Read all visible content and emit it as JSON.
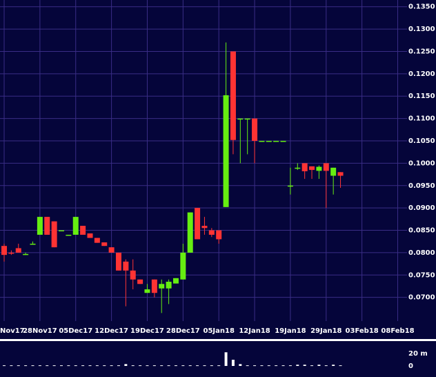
{
  "chart_data": {
    "type": "candlestick",
    "up_color": "#66ee11",
    "down_color": "#ff3333",
    "grid": true,
    "x": [
      0,
      1,
      2,
      3,
      4,
      5,
      6,
      7,
      8,
      9,
      10,
      11,
      12,
      13,
      14,
      15,
      16,
      17,
      18,
      19,
      20,
      21,
      22,
      23,
      24,
      25,
      26,
      27,
      28,
      29,
      30,
      31,
      32,
      33,
      34,
      35,
      36,
      37,
      38,
      39,
      40,
      41,
      42,
      43,
      44,
      45,
      46,
      47
    ],
    "open": [
      0.0815,
      0.08,
      0.081,
      0.0797,
      0.082,
      0.084,
      0.088,
      0.087,
      0.085,
      0.084,
      0.084,
      0.086,
      0.0843,
      0.0833,
      0.0823,
      0.0812,
      0.08,
      0.078,
      0.076,
      0.074,
      0.071,
      0.074,
      0.072,
      0.072,
      0.0731,
      0.074,
      0.08,
      0.09,
      0.086,
      0.085,
      0.085,
      0.0902,
      0.125,
      0.11,
      0.11,
      0.11,
      0.105,
      0.105,
      0.105,
      0.105,
      0.095,
      0.099,
      0.1,
      0.0993,
      0.0983,
      0.1,
      0.0972,
      0.098
    ],
    "high": [
      0.082,
      0.0805,
      0.082,
      0.08,
      0.0825,
      0.088,
      0.088,
      0.087,
      0.085,
      0.084,
      0.088,
      0.086,
      0.0843,
      0.0833,
      0.0823,
      0.0812,
      0.08,
      0.0785,
      0.0785,
      0.074,
      0.073,
      0.074,
      0.074,
      0.074,
      0.0743,
      0.082,
      0.089,
      0.09,
      0.088,
      0.0855,
      0.085,
      0.127,
      0.125,
      0.11,
      0.11,
      0.11,
      0.105,
      0.105,
      0.105,
      0.105,
      0.099,
      0.1,
      0.1,
      0.0993,
      0.0995,
      0.1,
      0.099,
      0.098
    ],
    "low": [
      0.078,
      0.0795,
      0.08,
      0.0795,
      0.082,
      0.084,
      0.084,
      0.0812,
      0.085,
      0.084,
      0.084,
      0.084,
      0.0833,
      0.0822,
      0.0815,
      0.08,
      0.076,
      0.068,
      0.0718,
      0.073,
      0.071,
      0.07,
      0.0665,
      0.0685,
      0.0731,
      0.074,
      0.08,
      0.083,
      0.084,
      0.0835,
      0.082,
      0.0902,
      0.102,
      0.1,
      0.102,
      0.1,
      0.105,
      0.105,
      0.105,
      0.105,
      0.093,
      0.0985,
      0.0965,
      0.0965,
      0.0965,
      0.09,
      0.093,
      0.0945
    ],
    "close": [
      0.0795,
      0.0798,
      0.08,
      0.0797,
      0.082,
      0.088,
      0.084,
      0.0812,
      0.085,
      0.084,
      0.088,
      0.084,
      0.0833,
      0.0822,
      0.0815,
      0.08,
      0.076,
      0.076,
      0.074,
      0.073,
      0.0718,
      0.071,
      0.073,
      0.0735,
      0.0743,
      0.08,
      0.089,
      0.083,
      0.0855,
      0.084,
      0.083,
      0.1152,
      0.1052,
      0.11,
      0.11,
      0.105,
      0.105,
      0.105,
      0.105,
      0.105,
      0.095,
      0.099,
      0.0982,
      0.0985,
      0.0992,
      0.0983,
      0.099,
      0.0972
    ],
    "volume": [
      1,
      1,
      1,
      1,
      1,
      1,
      1,
      1,
      1,
      1,
      1,
      1,
      1,
      1,
      1,
      1,
      1,
      3,
      1,
      1,
      1,
      1,
      1,
      1,
      1,
      1,
      1,
      1,
      1,
      1,
      1,
      22,
      10,
      3,
      1,
      1,
      1,
      1,
      1,
      1,
      1,
      2,
      2,
      1,
      2,
      1,
      2,
      1
    ],
    "xlim": [
      -0.58,
      56.3
    ],
    "xticks": [
      {
        "value": 0,
        "label": "Nov17"
      },
      {
        "value": 5,
        "label": "28Nov17"
      },
      {
        "value": 10,
        "label": "05Dec17"
      },
      {
        "value": 15,
        "label": "12Dec17"
      },
      {
        "value": 20,
        "label": "19Dec17"
      },
      {
        "value": 25,
        "label": "28Dec17"
      },
      {
        "value": 30,
        "label": "05Jan18"
      },
      {
        "value": 35,
        "label": "12Jan18"
      },
      {
        "value": 40,
        "label": "19Jan18"
      },
      {
        "value": 45,
        "label": "29Jan18"
      },
      {
        "value": 50,
        "label": "03Feb18"
      },
      {
        "value": 55,
        "label": "08Feb18"
      }
    ],
    "ylim": [
      0.0647,
      0.1365
    ],
    "yticks": [
      {
        "value": 0.135,
        "label": "0.1350"
      },
      {
        "value": 0.13,
        "label": "0.1300"
      },
      {
        "value": 0.125,
        "label": "0.1250"
      },
      {
        "value": 0.12,
        "label": "0.1200"
      },
      {
        "value": 0.115,
        "label": "0.1150"
      },
      {
        "value": 0.11,
        "label": "0.1100"
      },
      {
        "value": 0.105,
        "label": "0.1050"
      },
      {
        "value": 0.1,
        "label": "0.1000"
      },
      {
        "value": 0.095,
        "label": "0.0950"
      },
      {
        "value": 0.09,
        "label": "0.0900"
      },
      {
        "value": 0.085,
        "label": "0.0850"
      },
      {
        "value": 0.08,
        "label": "0.0800"
      },
      {
        "value": 0.075,
        "label": "0.0750"
      },
      {
        "value": 0.07,
        "label": "0.0700"
      }
    ],
    "volume_ylim": [
      0,
      38.9
    ],
    "volume_yticks": [
      {
        "value": 20,
        "label": "20 m"
      },
      0
    ]
  }
}
